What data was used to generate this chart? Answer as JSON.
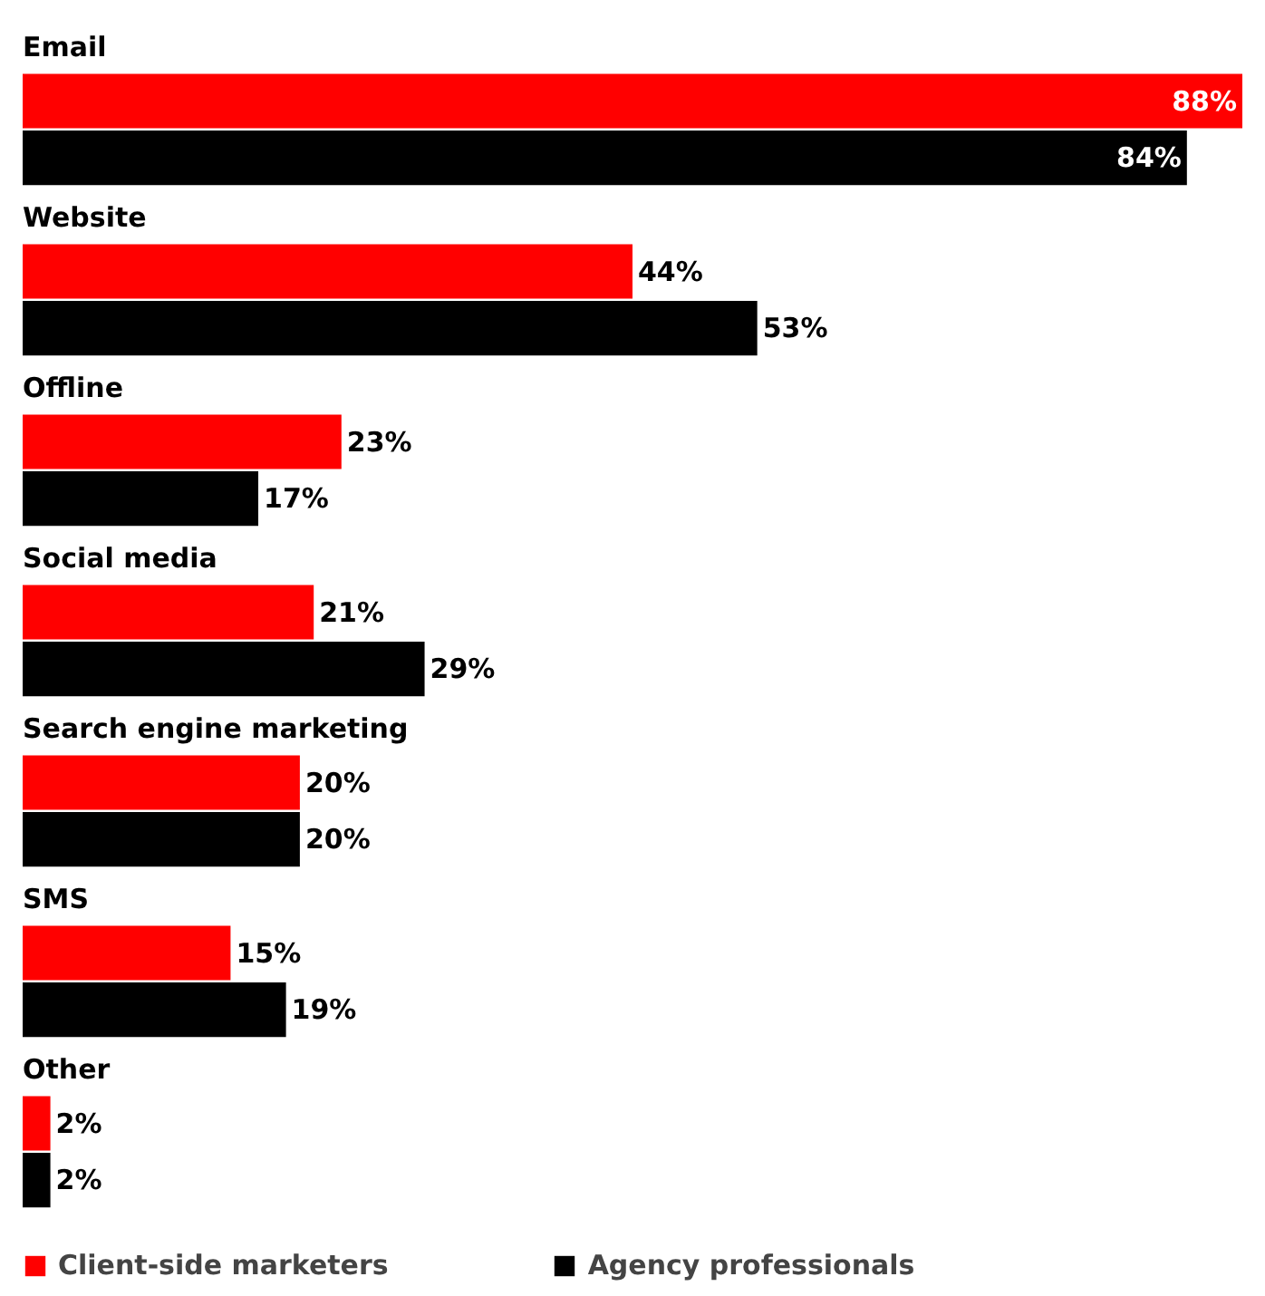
{
  "chart_data": {
    "type": "bar",
    "orientation": "horizontal",
    "categories": [
      "Email",
      "Website",
      "Offline",
      "Social media",
      "Search engine marketing",
      "SMS",
      "Other"
    ],
    "series": [
      {
        "name": "Client-side marketers",
        "color": "#ff0000",
        "values": [
          88,
          44,
          23,
          21,
          20,
          15,
          2
        ],
        "value_labels": [
          "88%",
          "44%",
          "23%",
          "21%",
          "20%",
          "15%",
          "2%"
        ]
      },
      {
        "name": "Agency professionals",
        "color": "#000000",
        "values": [
          84,
          53,
          17,
          29,
          20,
          19,
          2
        ],
        "value_labels": [
          "84%",
          "53%",
          "17%",
          "29%",
          "20%",
          "19%",
          "2%"
        ]
      }
    ],
    "legend": "bottom",
    "grid": false
  }
}
